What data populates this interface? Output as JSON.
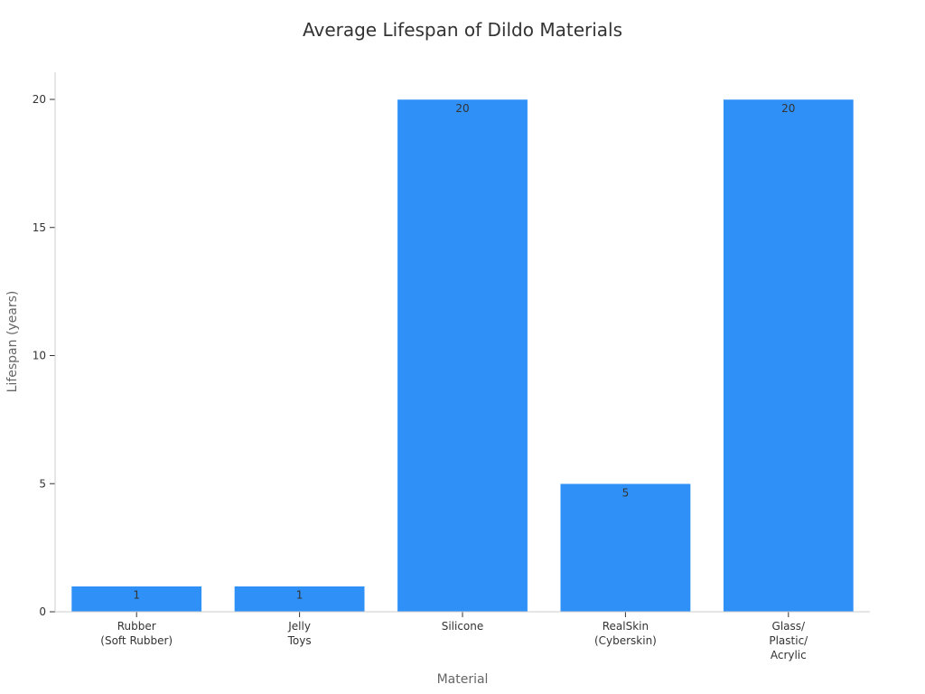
{
  "chart_data": {
    "type": "bar",
    "title": "Average Lifespan of Dildo Materials",
    "xlabel": "Material",
    "ylabel": "Lifespan (years)",
    "categories": [
      [
        "Rubber",
        "(Soft Rubber)"
      ],
      [
        "Jelly",
        "Toys"
      ],
      [
        "Silicone"
      ],
      [
        "RealSkin",
        "(Cyberskin)"
      ],
      [
        "Glass/",
        "Plastic/",
        "Acrylic"
      ]
    ],
    "values": [
      1,
      1,
      20,
      5,
      20
    ],
    "data_labels": [
      "1",
      "1",
      "20",
      "5",
      "20"
    ],
    "ylim": [
      0,
      20
    ],
    "yticks": [
      0,
      5,
      10,
      15,
      20
    ],
    "grid": false,
    "bar_color": "#2f91f7",
    "axis_color": "#cccccc"
  }
}
